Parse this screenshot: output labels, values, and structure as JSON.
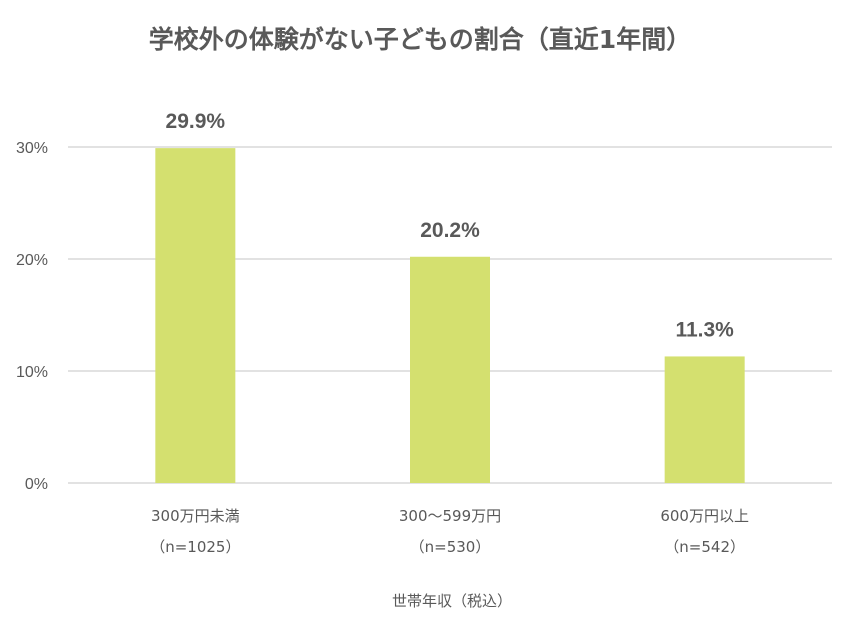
{
  "chart_data": {
    "type": "bar",
    "title": "学校外の体験がない子どもの割合（直近1年間）",
    "xlabel": "世帯年収（税込）",
    "ylabel": "",
    "categories": [
      {
        "label": "300万円未満",
        "sample": "（n=1025）"
      },
      {
        "label": "300～599万円",
        "sample": "（n=530）"
      },
      {
        "label": "600万円以上",
        "sample": "（n=542）"
      }
    ],
    "values": [
      29.9,
      20.2,
      11.3
    ],
    "data_labels": [
      "29.9%",
      "20.2%",
      "11.3%"
    ],
    "ylim": [
      0,
      30
    ],
    "yticks": [
      {
        "value": 0,
        "label": "0%"
      },
      {
        "value": 10,
        "label": "10%"
      },
      {
        "value": 20,
        "label": "20%"
      },
      {
        "value": 30,
        "label": "30%"
      }
    ],
    "grid": true,
    "legend": "none",
    "bar_color": "#d4e06f"
  }
}
